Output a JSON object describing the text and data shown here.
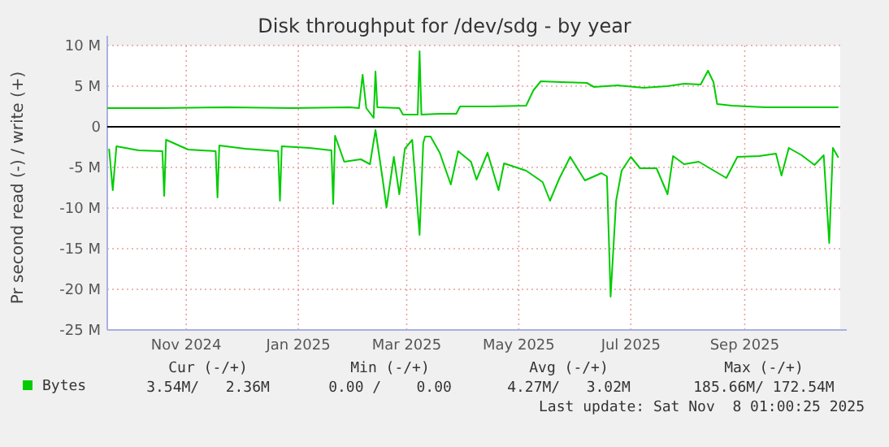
{
  "chart_data": {
    "type": "line",
    "title": "Disk throughput for /dev/sdg - by year",
    "ylabel": "Pr second read (-) / write (+)",
    "xlim": [
      "2024-09-19",
      "2025-10-23"
    ],
    "xticks": [
      {
        "value": "2024-11-01",
        "label": "Nov 2024"
      },
      {
        "value": "2025-01-01",
        "label": "Jan 2025"
      },
      {
        "value": "2025-03-01",
        "label": "Mar 2025"
      },
      {
        "value": "2025-05-01",
        "label": "May 2025"
      },
      {
        "value": "2025-07-01",
        "label": "Jul 2025"
      },
      {
        "value": "2025-09-01",
        "label": "Sep 2025"
      }
    ],
    "ylim": [
      -25,
      10
    ],
    "yticks": [
      {
        "value": -25,
        "label": "-25 M"
      },
      {
        "value": -20,
        "label": "-20 M"
      },
      {
        "value": -15,
        "label": "-15 M"
      },
      {
        "value": -10,
        "label": "-10 M"
      },
      {
        "value": -5,
        "label": "-5 M"
      },
      {
        "value": 0,
        "label": "0"
      },
      {
        "value": 5,
        "label": "5 M"
      },
      {
        "value": 10,
        "label": "10 M"
      }
    ],
    "grid": true,
    "legend": "bottom left",
    "marker": "none",
    "line_style": "solid",
    "ref_lines": [
      {
        "axis": "y",
        "value": 0,
        "color": "#000000"
      }
    ],
    "series": [
      {
        "name": "Bytes",
        "color": "#00cc00",
        "x": [
          "2024-09-19",
          "2024-10-19",
          "2024-11-24",
          "2024-12-29",
          "2025-01-29",
          "2025-02-03",
          "2025-02-05",
          "2025-02-07",
          "2025-02-11",
          "2025-02-12",
          "2025-02-13",
          "2025-02-25",
          "2025-02-27",
          "2025-03-07",
          "2025-03-08",
          "2025-03-09",
          "2025-03-19",
          "2025-03-28",
          "2025-03-30",
          "2025-04-15",
          "2025-05-05",
          "2025-05-09",
          "2025-05-13",
          "2025-05-24",
          "2025-06-07",
          "2025-06-11",
          "2025-06-24",
          "2025-07-08",
          "2025-07-21",
          "2025-07-30",
          "2025-08-08",
          "2025-08-12",
          "2025-08-15",
          "2025-08-17",
          "2025-08-25",
          "2025-09-12",
          "2025-09-30",
          "2025-10-22"
        ],
        "values": [
          2.3,
          2.3,
          2.4,
          2.3,
          2.4,
          2.3,
          6.4,
          2.3,
          1.1,
          6.8,
          2.4,
          2.3,
          1.5,
          1.5,
          9.3,
          1.5,
          1.6,
          1.6,
          2.5,
          2.5,
          2.6,
          4.5,
          5.6,
          5.5,
          5.4,
          4.9,
          5.1,
          4.8,
          5.0,
          5.3,
          5.2,
          6.9,
          5.5,
          2.8,
          2.6,
          2.4,
          2.4,
          2.4
        ]
      },
      {
        "color": "#00cc00",
        "x": [
          "2024-09-20",
          "2024-09-22",
          "2024-09-24",
          "2024-10-06",
          "2024-10-19",
          "2024-10-20",
          "2024-10-21",
          "2024-11-02",
          "2024-11-17",
          "2024-11-18",
          "2024-11-19",
          "2024-12-03",
          "2024-12-21",
          "2024-12-22",
          "2024-12-23",
          "2025-01-07",
          "2025-01-19",
          "2025-01-20",
          "2025-01-21",
          "2025-01-26",
          "2025-02-04",
          "2025-02-09",
          "2025-02-12",
          "2025-02-16",
          "2025-02-18",
          "2025-02-22",
          "2025-02-25",
          "2025-02-28",
          "2025-03-04",
          "2025-03-08",
          "2025-03-10",
          "2025-03-11",
          "2025-03-14",
          "2025-03-19",
          "2025-03-25",
          "2025-03-29",
          "2025-04-05",
          "2025-04-08",
          "2025-04-14",
          "2025-04-20",
          "2025-04-23",
          "2025-05-05",
          "2025-05-14",
          "2025-05-18",
          "2025-05-23",
          "2025-05-29",
          "2025-06-06",
          "2025-06-15",
          "2025-06-18",
          "2025-06-20",
          "2025-06-23",
          "2025-06-26",
          "2025-07-01",
          "2025-07-06",
          "2025-07-15",
          "2025-07-21",
          "2025-07-24",
          "2025-07-30",
          "2025-08-07",
          "2025-08-13",
          "2025-08-22",
          "2025-08-28",
          "2025-09-09",
          "2025-09-18",
          "2025-09-21",
          "2025-09-25",
          "2025-10-02",
          "2025-10-09",
          "2025-10-14",
          "2025-10-17",
          "2025-10-19",
          "2025-10-22"
        ],
        "values": [
          -2.7,
          -7.8,
          -2.4,
          -2.9,
          -3.0,
          -8.5,
          -1.6,
          -2.8,
          -3.0,
          -8.7,
          -2.3,
          -2.7,
          -3.0,
          -9.1,
          -2.4,
          -2.6,
          -2.9,
          -9.5,
          -1.1,
          -4.3,
          -4.0,
          -4.6,
          -0.4,
          -6.6,
          -9.9,
          -3.7,
          -8.3,
          -2.7,
          -1.6,
          -13.3,
          -2.0,
          -1.2,
          -1.2,
          -3.2,
          -7.1,
          -3.0,
          -4.3,
          -6.5,
          -3.2,
          -7.8,
          -4.5,
          -5.4,
          -6.8,
          -9.1,
          -6.4,
          -3.7,
          -6.6,
          -5.7,
          -6.1,
          -20.9,
          -9.1,
          -5.4,
          -3.7,
          -5.1,
          -5.1,
          -8.3,
          -3.6,
          -4.6,
          -4.3,
          -5.1,
          -6.3,
          -3.7,
          -3.6,
          -3.3,
          -6.0,
          -2.6,
          -3.5,
          -4.7,
          -3.5,
          -14.3,
          -2.6,
          -3.8
        ]
      }
    ],
    "annotations": [
      "Cur (-/+)",
      "Min (-/+)",
      "Avg (-/+)",
      "Max (-/+)",
      "3.54M/   2.36M",
      "0.00 /    0.00",
      "4.27M/   3.02M",
      "185.66M/ 172.54M",
      "Last update: Sat Nov  8 01:00:25 2025"
    ]
  }
}
